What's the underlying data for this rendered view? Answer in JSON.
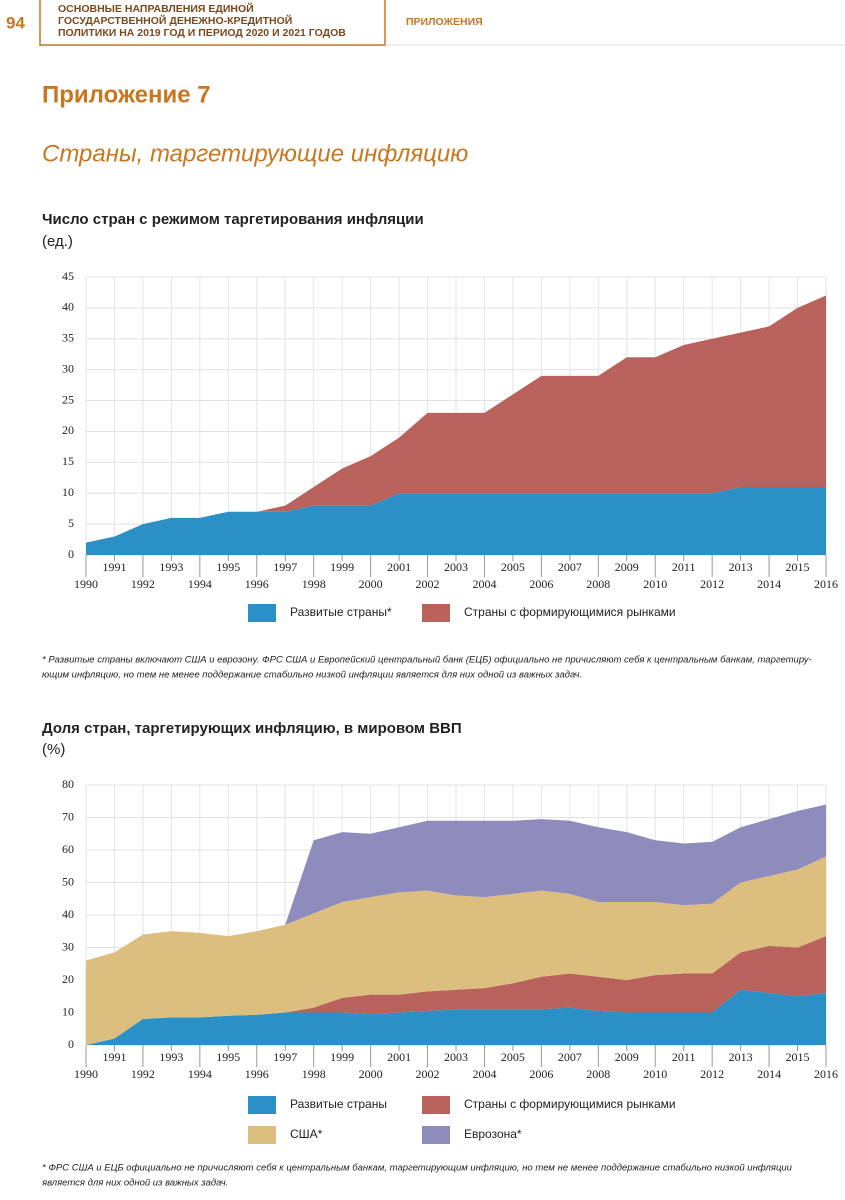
{
  "header": {
    "page": "94",
    "lines": [
      "ОСНОВНЫЕ НАПРАВЛЕНИЯ ЕДИНОЙ",
      "ГОСУДАРСТВЕННОЙ ДЕНЕЖНО-КРЕДИТНОЙ",
      "ПОЛИТИКИ НА 2019 ГОД И ПЕРИОД 2020 И 2021 ГОДОВ"
    ],
    "section": "ПРИЛОЖЕНИЯ"
  },
  "appendix": {
    "title": "Приложение 7",
    "subtitle": "Страны, таргетирующие инфляцию"
  },
  "chart_data": [
    {
      "type": "stacked_area",
      "title": "Число стран с режимом таргетирования инфляции",
      "unit": "(ед.)",
      "x": [
        1990,
        1991,
        1992,
        1993,
        1994,
        1995,
        1996,
        1997,
        1998,
        1999,
        2000,
        2001,
        2002,
        2003,
        2004,
        2005,
        2006,
        2007,
        2008,
        2009,
        2010,
        2011,
        2012,
        2013,
        2014,
        2015,
        2016
      ],
      "xlim": [
        1990,
        2016
      ],
      "xticks": [
        1990,
        1991,
        1992,
        1993,
        1994,
        1995,
        1996,
        1997,
        1998,
        1999,
        2000,
        2001,
        2002,
        2003,
        2004,
        2005,
        2006,
        2007,
        2008,
        2009,
        2010,
        2011,
        2012,
        2013,
        2014,
        2015,
        2016
      ],
      "ylim": [
        0,
        45
      ],
      "yticks": [
        0,
        5,
        10,
        15,
        20,
        25,
        30,
        35,
        40,
        45
      ],
      "grid": true,
      "series": [
        {
          "name": "Развитые страны*",
          "color": "#2a90c6",
          "values": [
            2,
            3,
            5,
            6,
            6,
            7,
            7,
            7,
            8,
            8,
            8,
            10,
            10,
            10,
            10,
            10,
            10,
            10,
            10,
            10,
            10,
            10,
            10,
            11,
            11,
            11,
            11
          ]
        },
        {
          "name": "Страны с формирующимися рынками",
          "color": "#b9625c",
          "values": [
            0,
            0,
            0,
            0,
            0,
            0,
            0,
            1,
            3,
            6,
            8,
            9,
            13,
            13,
            13,
            16,
            19,
            19,
            19,
            22,
            22,
            24,
            25,
            25,
            26,
            29,
            31
          ]
        }
      ],
      "note_lines": [
        "* Развитые страны включают США и еврозону. ФРС США и Европейский центральный банк (ЕЦБ) официально не причисляют себя к центральным банкам, таргетиру-",
        "ющим инфляцию, но тем не менее поддержание стабильно низкой инфляции является для них одной из важных задач."
      ]
    },
    {
      "type": "stacked_area",
      "title": "Доля стран, таргетирующих инфляцию, в мировом ВВП",
      "unit": "(%)",
      "x": [
        1990,
        1991,
        1992,
        1993,
        1994,
        1995,
        1996,
        1997,
        1998,
        1999,
        2000,
        2001,
        2002,
        2003,
        2004,
        2005,
        2006,
        2007,
        2008,
        2009,
        2010,
        2011,
        2012,
        2013,
        2014,
        2015,
        2016
      ],
      "xlim": [
        1990,
        2016
      ],
      "xticks": [
        1990,
        1991,
        1992,
        1993,
        1994,
        1995,
        1996,
        1997,
        1998,
        1999,
        2000,
        2001,
        2002,
        2003,
        2004,
        2005,
        2006,
        2007,
        2008,
        2009,
        2010,
        2011,
        2012,
        2013,
        2014,
        2015,
        2016
      ],
      "ylim": [
        0,
        80
      ],
      "yticks": [
        0,
        10,
        20,
        30,
        40,
        50,
        60,
        70,
        80
      ],
      "grid": true,
      "series": [
        {
          "name": "Развитые страны",
          "color": "#2a90c6",
          "values": [
            0,
            2,
            8,
            8.5,
            8.5,
            9,
            9.3,
            10,
            10,
            10,
            9.5,
            10,
            10.5,
            11,
            11,
            11,
            11,
            11.5,
            10.5,
            10,
            10,
            10,
            10,
            17,
            16,
            15,
            16
          ]
        },
        {
          "name": "Страны с формирующимися рынками",
          "color": "#b9625c",
          "values": [
            0,
            0,
            0,
            0,
            0,
            0,
            0,
            0,
            1.5,
            4.5,
            6,
            5.5,
            6,
            6,
            6.5,
            8,
            10,
            10.5,
            10.5,
            10,
            11.5,
            12,
            12,
            11.5,
            14.5,
            15,
            17.5
          ]
        },
        {
          "name": "США*",
          "color": "#dcbf7e",
          "values": [
            26,
            26.5,
            26,
            26.5,
            26,
            24.5,
            25.7,
            27,
            29,
            29.5,
            30,
            31.5,
            31,
            29,
            28,
            27.5,
            26.5,
            24.5,
            23,
            24,
            22.5,
            21,
            21.5,
            21.5,
            21.5,
            24,
            24.5
          ]
        },
        {
          "name": "Еврозона*",
          "color": "#8d8cbc",
          "values": [
            0,
            0,
            0,
            0,
            0,
            0,
            0,
            0,
            22.5,
            21.5,
            19.5,
            20,
            21.5,
            23,
            23.5,
            22.5,
            22,
            22.5,
            23,
            21.5,
            19,
            19,
            19,
            17,
            17.5,
            18,
            16
          ]
        }
      ],
      "note_lines": [
        "* ФРС США и ЕЦБ официально не причисляют себя к центральным банкам, таргетирующим инфляцию, но тем не менее поддержание стабильно низкой инфляции",
        "является для них одной из важных задач."
      ]
    }
  ]
}
